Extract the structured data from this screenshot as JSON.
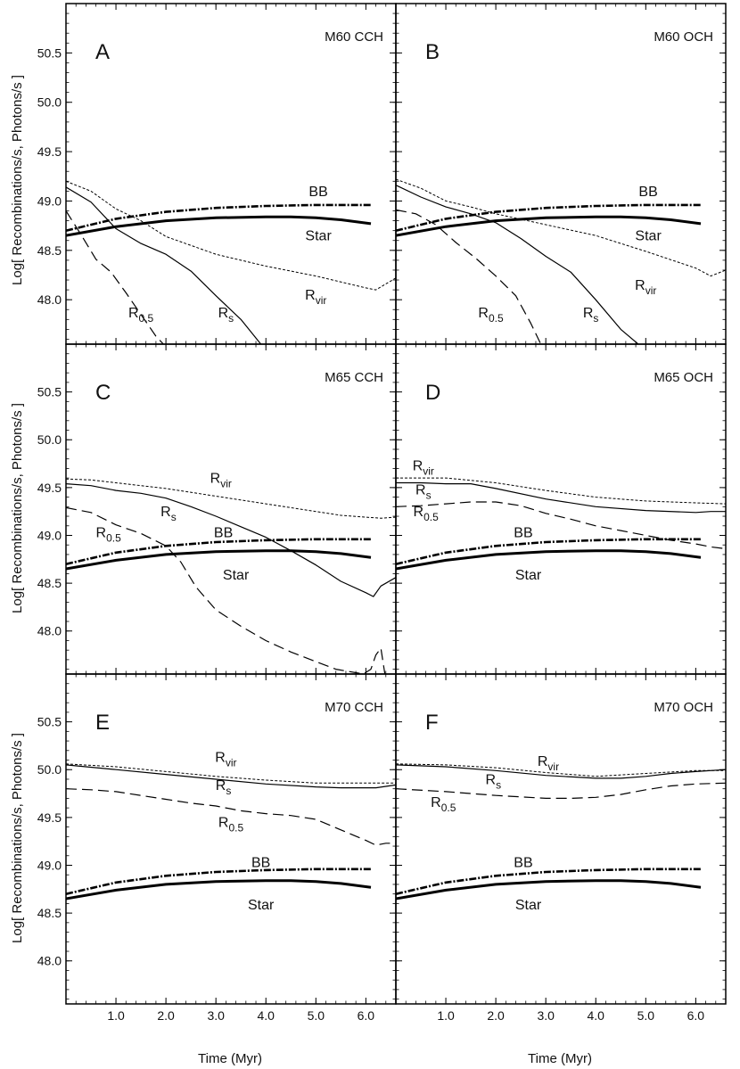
{
  "chart_data": {
    "type": "line",
    "xlabel": "Time (Myr)",
    "ylabel": "Log[ Recombinations/s, Photons/s ]",
    "xlim": [
      0,
      6.6
    ],
    "ylim": [
      47.55,
      51.0
    ],
    "xticks": [
      1.0,
      2.0,
      3.0,
      4.0,
      5.0,
      6.0
    ],
    "xtick_labels": [
      "1.0",
      "2.0",
      "3.0",
      "4.0",
      "5.0",
      "6.0"
    ],
    "yticks": [
      48.0,
      48.5,
      49.0,
      49.5,
      50.0,
      50.5
    ],
    "ytick_labels": [
      "48.0",
      "48.5",
      "49.0",
      "49.5",
      "50.0",
      "50.5"
    ],
    "common_series": {
      "BB": {
        "x": [
          0,
          1,
          2,
          3,
          4,
          5,
          6.1
        ],
        "y": [
          48.7,
          48.82,
          48.89,
          48.93,
          48.95,
          48.96,
          48.96
        ]
      },
      "Star": {
        "x": [
          0,
          1,
          2,
          3,
          4,
          4.5,
          5,
          5.5,
          6.1
        ],
        "y": [
          48.65,
          48.74,
          48.8,
          48.83,
          48.84,
          48.84,
          48.83,
          48.81,
          48.77
        ]
      }
    },
    "panels": [
      {
        "letter": "A",
        "title": "M60 CCH",
        "series": [
          {
            "name": "Rvir",
            "x": [
              0,
              0.5,
              1.0,
              1.5,
              2.0,
              3.0,
              4.0,
              5.0,
              6.0,
              6.2,
              6.6
            ],
            "y": [
              49.2,
              49.1,
              48.92,
              48.8,
              48.64,
              48.46,
              48.34,
              48.24,
              48.12,
              48.1,
              48.22
            ]
          },
          {
            "name": "Rs",
            "x": [
              0,
              0.5,
              1.0,
              1.5,
              2.0,
              2.5,
              3.0,
              3.5,
              3.9
            ],
            "y": [
              49.14,
              48.99,
              48.72,
              48.57,
              48.46,
              48.29,
              48.04,
              47.8,
              47.55
            ]
          },
          {
            "name": "R0.5",
            "x": [
              0,
              0.3,
              0.6,
              0.9,
              1.2,
              1.5,
              1.8,
              1.95
            ],
            "y": [
              48.9,
              48.66,
              48.41,
              48.28,
              48.07,
              47.85,
              47.63,
              47.55
            ]
          }
        ],
        "labels": [
          {
            "name": "BB",
            "main": "BB",
            "sub": "",
            "x": 5.05,
            "y": 49.05
          },
          {
            "name": "Star",
            "main": "Star",
            "sub": "",
            "x": 5.05,
            "y": 48.6
          },
          {
            "name": "Rvir",
            "main": "R",
            "sub": "vir",
            "x": 5.0,
            "y": 48.0
          },
          {
            "name": "Rs",
            "main": "R",
            "sub": "s",
            "x": 3.2,
            "y": 47.82
          },
          {
            "name": "R0.5",
            "main": "R",
            "sub": "0.5",
            "x": 1.5,
            "y": 47.82
          }
        ]
      },
      {
        "letter": "B",
        "title": "M60 OCH",
        "series": [
          {
            "name": "Rvir",
            "x": [
              0,
              0.5,
              1.0,
              1.5,
              2.0,
              3.0,
              4.0,
              5.0,
              6.0,
              6.3,
              6.6
            ],
            "y": [
              49.22,
              49.13,
              49.0,
              48.94,
              48.87,
              48.76,
              48.65,
              48.49,
              48.32,
              48.24,
              48.3
            ]
          },
          {
            "name": "Rs",
            "x": [
              0,
              0.5,
              1.0,
              1.5,
              2.0,
              2.5,
              3.0,
              3.5,
              4.0,
              4.5,
              4.85
            ],
            "y": [
              49.16,
              49.04,
              48.94,
              48.87,
              48.78,
              48.62,
              48.44,
              48.28,
              48.0,
              47.7,
              47.55
            ]
          },
          {
            "name": "R0.5",
            "x": [
              0,
              0.4,
              0.8,
              1.2,
              1.6,
              2.0,
              2.4,
              2.7,
              2.9
            ],
            "y": [
              48.91,
              48.87,
              48.76,
              48.58,
              48.42,
              48.24,
              48.04,
              47.76,
              47.55
            ]
          }
        ],
        "labels": [
          {
            "name": "BB",
            "main": "BB",
            "sub": "",
            "x": 5.05,
            "y": 49.05
          },
          {
            "name": "Star",
            "main": "Star",
            "sub": "",
            "x": 5.05,
            "y": 48.6
          },
          {
            "name": "Rvir",
            "main": "R",
            "sub": "vir",
            "x": 5.0,
            "y": 48.1
          },
          {
            "name": "Rs",
            "main": "R",
            "sub": "s",
            "x": 3.9,
            "y": 47.82
          },
          {
            "name": "R0.5",
            "main": "R",
            "sub": "0.5",
            "x": 1.9,
            "y": 47.82
          }
        ]
      },
      {
        "letter": "C",
        "title": "M65 CCH",
        "series": [
          {
            "name": "Rvir",
            "x": [
              0,
              0.5,
              1.0,
              2.0,
              3.0,
              4.0,
              5.0,
              5.5,
              6.0,
              6.3,
              6.6
            ],
            "y": [
              49.59,
              49.58,
              49.55,
              49.49,
              49.41,
              49.33,
              49.25,
              49.21,
              49.19,
              49.18,
              49.19
            ]
          },
          {
            "name": "Rs",
            "x": [
              0,
              0.5,
              1.0,
              1.5,
              2.0,
              2.5,
              3.0,
              3.5,
              4.0,
              4.5,
              5.0,
              5.5,
              6.0,
              6.15,
              6.3,
              6.6
            ],
            "y": [
              49.54,
              49.52,
              49.47,
              49.44,
              49.39,
              49.3,
              49.2,
              49.09,
              48.98,
              48.84,
              48.69,
              48.52,
              48.4,
              48.36,
              48.47,
              48.56
            ]
          },
          {
            "name": "R0.5",
            "x": [
              0,
              0.5,
              1.0,
              1.5,
              2.0,
              2.3,
              2.6,
              3.0,
              3.5,
              4.0,
              4.5,
              5.0,
              5.4,
              5.95,
              6.1,
              6.2,
              6.3,
              6.38
            ],
            "y": [
              49.29,
              49.24,
              49.11,
              49.02,
              48.89,
              48.72,
              48.46,
              48.22,
              48.05,
              47.9,
              47.78,
              47.68,
              47.6,
              47.55,
              47.6,
              47.75,
              47.82,
              47.55
            ]
          }
        ],
        "labels": [
          {
            "name": "Rvir",
            "main": "R",
            "sub": "vir",
            "x": 3.1,
            "y": 49.55
          },
          {
            "name": "Rs",
            "main": "R",
            "sub": "s",
            "x": 2.05,
            "y": 49.2
          },
          {
            "name": "R0.5",
            "main": "R",
            "sub": "0.5",
            "x": 0.85,
            "y": 48.98
          },
          {
            "name": "BB",
            "main": "BB",
            "sub": "",
            "x": 3.15,
            "y": 48.98
          },
          {
            "name": "Star",
            "main": "Star",
            "sub": "",
            "x": 3.4,
            "y": 48.54
          }
        ]
      },
      {
        "letter": "D",
        "title": "M65 OCH",
        "series": [
          {
            "name": "Rvir",
            "x": [
              0,
              1.0,
              2.0,
              3.0,
              4.0,
              5.0,
              6.0,
              6.6
            ],
            "y": [
              49.6,
              49.6,
              49.55,
              49.47,
              49.4,
              49.36,
              49.34,
              49.33
            ]
          },
          {
            "name": "Rs",
            "x": [
              0,
              0.5,
              1.0,
              1.5,
              2.0,
              3.0,
              4.0,
              5.0,
              6.0,
              6.3,
              6.6
            ],
            "y": [
              49.55,
              49.55,
              49.54,
              49.54,
              49.49,
              49.38,
              49.3,
              49.26,
              49.24,
              49.25,
              49.25
            ]
          },
          {
            "name": "R0.5",
            "x": [
              0,
              0.5,
              1.0,
              1.5,
              2.0,
              2.5,
              3.0,
              3.5,
              4.0,
              4.5,
              5.0,
              5.5,
              6.0,
              6.3,
              6.6
            ],
            "y": [
              49.3,
              49.31,
              49.33,
              49.35,
              49.35,
              49.31,
              49.23,
              49.17,
              49.1,
              49.05,
              49.0,
              48.95,
              48.91,
              48.88,
              48.86
            ]
          }
        ],
        "labels": [
          {
            "name": "Rvir",
            "main": "R",
            "sub": "vir",
            "x": 0.55,
            "y": 49.68
          },
          {
            "name": "Rs",
            "main": "R",
            "sub": "s",
            "x": 0.55,
            "y": 49.43
          },
          {
            "name": "R0.5",
            "main": "R",
            "sub": "0.5",
            "x": 0.6,
            "y": 49.2
          },
          {
            "name": "BB",
            "main": "BB",
            "sub": "",
            "x": 2.55,
            "y": 48.98
          },
          {
            "name": "Star",
            "main": "Star",
            "sub": "",
            "x": 2.65,
            "y": 48.54
          }
        ]
      },
      {
        "letter": "E",
        "title": "M70 CCH",
        "series": [
          {
            "name": "Rvir",
            "x": [
              0,
              1.0,
              2.0,
              3.0,
              4.0,
              5.0,
              5.5,
              6.0,
              6.6
            ],
            "y": [
              50.06,
              50.03,
              49.98,
              49.93,
              49.89,
              49.86,
              49.86,
              49.86,
              49.86
            ]
          },
          {
            "name": "Rs",
            "x": [
              0,
              1.0,
              2.0,
              3.0,
              4.0,
              5.0,
              5.5,
              6.0,
              6.2,
              6.6
            ],
            "y": [
              50.05,
              50.0,
              49.95,
              49.9,
              49.85,
              49.82,
              49.81,
              49.81,
              49.81,
              49.84
            ]
          },
          {
            "name": "R0.5",
            "x": [
              0,
              0.5,
              1.0,
              1.5,
              2.0,
              2.5,
              3.0,
              3.5,
              4.0,
              4.5,
              5.0,
              5.5,
              6.0,
              6.2,
              6.4,
              6.6
            ],
            "y": [
              49.8,
              49.79,
              49.77,
              49.73,
              49.69,
              49.65,
              49.62,
              49.57,
              49.54,
              49.52,
              49.48,
              49.37,
              49.26,
              49.21,
              49.23,
              49.23
            ]
          }
        ],
        "labels": [
          {
            "name": "Rvir",
            "main": "R",
            "sub": "vir",
            "x": 3.2,
            "y": 50.08
          },
          {
            "name": "Rs",
            "main": "R",
            "sub": "s",
            "x": 3.15,
            "y": 49.79
          },
          {
            "name": "R0.5",
            "main": "R",
            "sub": "0.5",
            "x": 3.3,
            "y": 49.4
          },
          {
            "name": "BB",
            "main": "BB",
            "sub": "",
            "x": 3.9,
            "y": 48.98
          },
          {
            "name": "Star",
            "main": "Star",
            "sub": "",
            "x": 3.9,
            "y": 48.54
          }
        ]
      },
      {
        "letter": "F",
        "title": "M70 OCH",
        "series": [
          {
            "name": "Rvir",
            "x": [
              0,
              1.0,
              2.0,
              3.0,
              4.0,
              5.0,
              6.0,
              6.6
            ],
            "y": [
              50.06,
              50.05,
              50.02,
              49.97,
              49.93,
              49.96,
              49.99,
              49.99
            ]
          },
          {
            "name": "Rs",
            "x": [
              0,
              1.0,
              2.0,
              3.0,
              4.0,
              4.5,
              5.0,
              5.5,
              6.0,
              6.6
            ],
            "y": [
              50.05,
              50.03,
              49.99,
              49.94,
              49.91,
              49.91,
              49.93,
              49.96,
              49.98,
              50.0
            ]
          },
          {
            "name": "R0.5",
            "x": [
              0,
              1.0,
              2.0,
              3.0,
              3.5,
              4.0,
              4.5,
              5.0,
              5.5,
              6.0,
              6.6
            ],
            "y": [
              49.8,
              49.77,
              49.73,
              49.7,
              49.7,
              49.71,
              49.74,
              49.79,
              49.83,
              49.85,
              49.86
            ]
          }
        ],
        "labels": [
          {
            "name": "Rvir",
            "main": "R",
            "sub": "vir",
            "x": 3.05,
            "y": 50.04
          },
          {
            "name": "Rs",
            "main": "R",
            "sub": "s",
            "x": 1.95,
            "y": 49.85
          },
          {
            "name": "R0.5",
            "main": "R",
            "sub": "0.5",
            "x": 0.95,
            "y": 49.61
          },
          {
            "name": "BB",
            "main": "BB",
            "sub": "",
            "x": 2.55,
            "y": 48.98
          },
          {
            "name": "Star",
            "main": "Star",
            "sub": "",
            "x": 2.65,
            "y": 48.54
          }
        ]
      }
    ]
  }
}
